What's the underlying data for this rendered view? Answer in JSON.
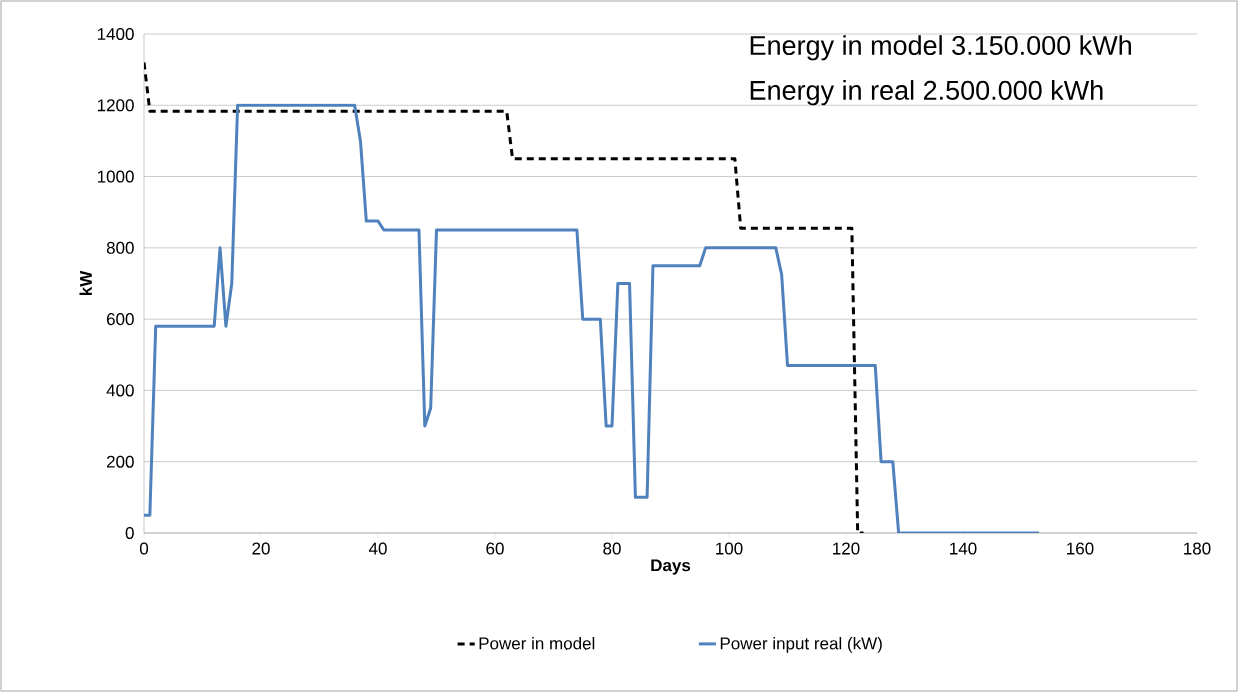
{
  "chart_data": {
    "type": "line",
    "xlabel": "Days",
    "ylabel": "kW",
    "xlim": [
      0,
      180
    ],
    "ylim": [
      0,
      1400
    ],
    "xticks": [
      0,
      20,
      40,
      60,
      80,
      100,
      120,
      140,
      160,
      180
    ],
    "yticks": [
      0,
      200,
      400,
      600,
      800,
      1000,
      1200,
      1400
    ],
    "grid": "y",
    "legend": "bottom",
    "marker": "none",
    "annotations": [
      "Energy in model 3.150.000 kWh",
      "Energy in real 2.500.000 kWh"
    ],
    "series": [
      {
        "name": "Power in model",
        "color": "#000000",
        "line_style": "dashed",
        "x": [
          0,
          1,
          62,
          63,
          101,
          102,
          121,
          122,
          123
        ],
        "values": [
          1320,
          1183,
          1183,
          1050,
          1050,
          855,
          855,
          0,
          0
        ]
      },
      {
        "name": "Power input real (kW)",
        "color": "#4f81bd",
        "line_style": "solid",
        "x": [
          0,
          1,
          2,
          12,
          13,
          14,
          15,
          16,
          36,
          37,
          38,
          40,
          41,
          47,
          48,
          49,
          50,
          74,
          75,
          78,
          79,
          80,
          81,
          83,
          84,
          86,
          87,
          95,
          96,
          108,
          109,
          110,
          125,
          126,
          128,
          129,
          153
        ],
        "values": [
          50,
          50,
          580,
          580,
          800,
          580,
          700,
          1200,
          1200,
          1100,
          875,
          875,
          850,
          850,
          300,
          350,
          850,
          850,
          600,
          600,
          300,
          300,
          700,
          700,
          100,
          100,
          750,
          750,
          800,
          800,
          725,
          470,
          470,
          200,
          200,
          0,
          0
        ]
      }
    ]
  }
}
